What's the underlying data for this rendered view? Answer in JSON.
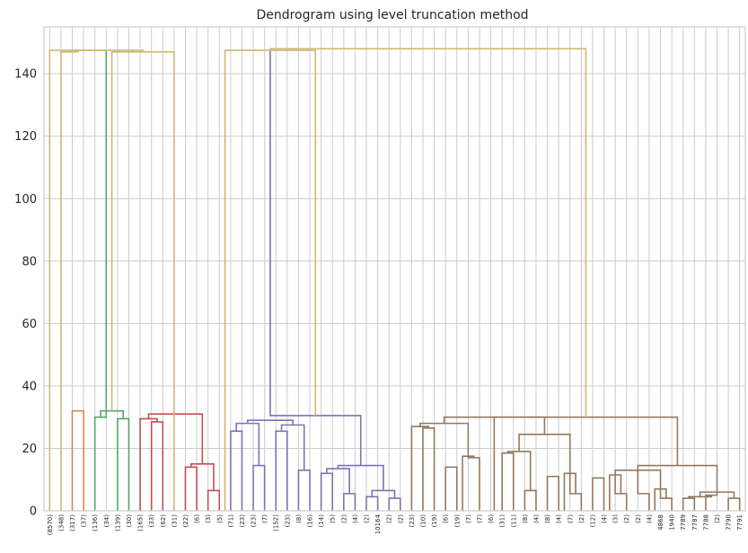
{
  "chart_data": {
    "type": "dendrogram",
    "title": "Dendrogram using level truncation method",
    "xlabel": "",
    "ylabel": "",
    "ylim": [
      0,
      155
    ],
    "yticks": [
      0,
      20,
      40,
      60,
      80,
      100,
      120,
      140
    ],
    "grid": true,
    "leaf_labels": [
      "(8570)",
      "(348)",
      "(317)",
      "(37)",
      "(136)",
      "(34)",
      "(139)",
      "(30)",
      "(165)",
      "(33)",
      "(62)",
      "(31)",
      "(22)",
      "(6)",
      "(3)",
      "(5)",
      "(71)",
      "(23)",
      "(23)",
      "(7)",
      "(152)",
      "(23)",
      "(8)",
      "(16)",
      "(14)",
      "(5)",
      "(2)",
      "(4)",
      "(2)",
      "10164",
      "(2)",
      "(2)",
      "(23)",
      "(10)",
      "(19)",
      "(6)",
      "(19)",
      "(7)",
      "(7)",
      "(6)",
      "(31)",
      "(11)",
      "(8)",
      "(4)",
      "(8)",
      "(4)",
      "(7)",
      "(2)",
      "(12)",
      "(4)",
      "(3)",
      "(2)",
      "(2)",
      "(4)",
      "4868",
      "1940",
      "7789",
      "7787",
      "7788",
      "(2)",
      "7790",
      "7791"
    ],
    "links": [
      {
        "l": 2,
        "r": 3,
        "h": 32,
        "c": "#dd8452"
      },
      {
        "l": 4,
        "r": 5,
        "h": 30,
        "c": "#55a868"
      },
      {
        "l": 6,
        "r": 7,
        "h": 29.5,
        "c": "#55a868"
      },
      {
        "l": 4.5,
        "r": 6.5,
        "h": 32,
        "c": "#55a868"
      },
      {
        "l": 9,
        "r": 10,
        "h": 28.5,
        "c": "#c44e52"
      },
      {
        "l": 8,
        "r": 9.5,
        "h": 29.5,
        "c": "#c44e52"
      },
      {
        "l": 12,
        "r": 13,
        "h": 14,
        "c": "#c44e52"
      },
      {
        "l": 14,
        "r": 15,
        "h": 6.5,
        "c": "#c44e52"
      },
      {
        "l": 12.5,
        "r": 14.5,
        "h": 15,
        "c": "#c44e52"
      },
      {
        "l": 8.75,
        "r": 13.5,
        "h": 31,
        "c": "#c44e52"
      },
      {
        "l": 16,
        "r": 17,
        "h": 25.5,
        "c": "#8172b3"
      },
      {
        "l": 18,
        "r": 19,
        "h": 14.5,
        "c": "#8172b3"
      },
      {
        "l": 16.5,
        "r": 18.5,
        "h": 28,
        "c": "#8172b3"
      },
      {
        "l": 20,
        "r": 21,
        "h": 25.5,
        "c": "#8172b3"
      },
      {
        "l": 22,
        "r": 23,
        "h": 13,
        "c": "#8172b3"
      },
      {
        "l": 20.5,
        "r": 22.5,
        "h": 27.5,
        "c": "#8172b3"
      },
      {
        "l": 17.5,
        "r": 21.5,
        "h": 29,
        "c": "#8172b3"
      },
      {
        "l": 24,
        "r": 25,
        "h": 12,
        "c": "#8172b3"
      },
      {
        "l": 26,
        "r": 27,
        "h": 5.5,
        "c": "#8172b3"
      },
      {
        "l": 24.5,
        "r": 26.5,
        "h": 13.5,
        "c": "#8172b3"
      },
      {
        "l": 28,
        "r": 29,
        "h": 4.5,
        "c": "#8172b3"
      },
      {
        "l": 30,
        "r": 31,
        "h": 4,
        "c": "#8172b3"
      },
      {
        "l": 28.5,
        "r": 30.5,
        "h": 6.5,
        "c": "#8172b3"
      },
      {
        "l": 25.5,
        "r": 29.5,
        "h": 14.5,
        "c": "#8172b3"
      },
      {
        "l": 19.5,
        "r": 27.5,
        "h": 30.5,
        "c": "#8172b3"
      },
      {
        "l": 33,
        "r": 34,
        "h": 26.5,
        "c": "#937860"
      },
      {
        "l": 32,
        "r": 33.5,
        "h": 27,
        "c": "#937860"
      },
      {
        "l": 35,
        "r": 36,
        "h": 14,
        "c": "#937860"
      },
      {
        "l": 37,
        "r": 38,
        "h": 17,
        "c": "#937860"
      },
      {
        "l": 36.5,
        "r": 37.5,
        "h": 17.5,
        "c": "#937860"
      },
      {
        "l": 32.75,
        "r": 37,
        "h": 28,
        "c": "#937860"
      },
      {
        "l": 40,
        "r": 41,
        "h": 18.5,
        "c": "#937860"
      },
      {
        "l": 42,
        "r": 43,
        "h": 6.5,
        "c": "#937860"
      },
      {
        "l": 40.5,
        "r": 42.5,
        "h": 19,
        "c": "#937860"
      },
      {
        "l": 44,
        "r": 45,
        "h": 11,
        "c": "#937860"
      },
      {
        "l": 46,
        "r": 47,
        "h": 5.5,
        "c": "#937860"
      },
      {
        "l": 45.5,
        "r": 46.5,
        "h": 12,
        "c": "#937860"
      },
      {
        "l": 41.5,
        "r": 46,
        "h": 24.5,
        "c": "#937860"
      },
      {
        "l": 34.875,
        "r": 43.75,
        "h": 30,
        "c": "#937860"
      },
      {
        "l": 48,
        "r": 49,
        "h": 10.5,
        "c": "#937860"
      },
      {
        "l": 50,
        "r": 51,
        "h": 5.5,
        "c": "#937860"
      },
      {
        "l": 49.5,
        "r": 50.5,
        "h": 11.5,
        "c": "#937860"
      },
      {
        "l": 52,
        "r": 53,
        "h": 5.5,
        "c": "#937860"
      },
      {
        "l": 54,
        "r": 55,
        "h": 4,
        "c": "#937860"
      },
      {
        "l": 53.5,
        "r": 54.5,
        "h": 7,
        "c": "#937860"
      },
      {
        "l": 50,
        "r": 54,
        "h": 13,
        "c": "#937860"
      },
      {
        "l": 56,
        "r": 57,
        "h": 4,
        "c": "#937860"
      },
      {
        "l": 58,
        "r": 59,
        "h": 5,
        "c": "#937860"
      },
      {
        "l": 56.5,
        "r": 58.5,
        "h": 4.5,
        "c": "#937860"
      },
      {
        "l": 60,
        "r": 61,
        "h": 4,
        "c": "#937860"
      },
      {
        "l": 57.5,
        "r": 60.5,
        "h": 6,
        "c": "#937860"
      },
      {
        "l": 52,
        "r": 59,
        "h": 14.5,
        "c": "#937860"
      },
      {
        "l": 39.3,
        "r": 55.5,
        "h": 30,
        "c": "#937860"
      },
      {
        "l": 15.5,
        "r": 23.5,
        "h": 147.5,
        "c": "#ccb974"
      },
      {
        "l": 1,
        "r": 2.5,
        "h": 147,
        "c": "#ccb974"
      },
      {
        "l": 5.5,
        "r": 11,
        "h": 147,
        "c": "#ccb974"
      },
      {
        "l": 1.75,
        "r": 8.25,
        "h": 147.5,
        "c": "#ccb974"
      },
      {
        "l": 0,
        "r": 5,
        "h": 147.5,
        "c": "#ccb974"
      },
      {
        "l": 19.5,
        "r": 47.4,
        "h": 148,
        "c": "#ccb974"
      }
    ]
  }
}
